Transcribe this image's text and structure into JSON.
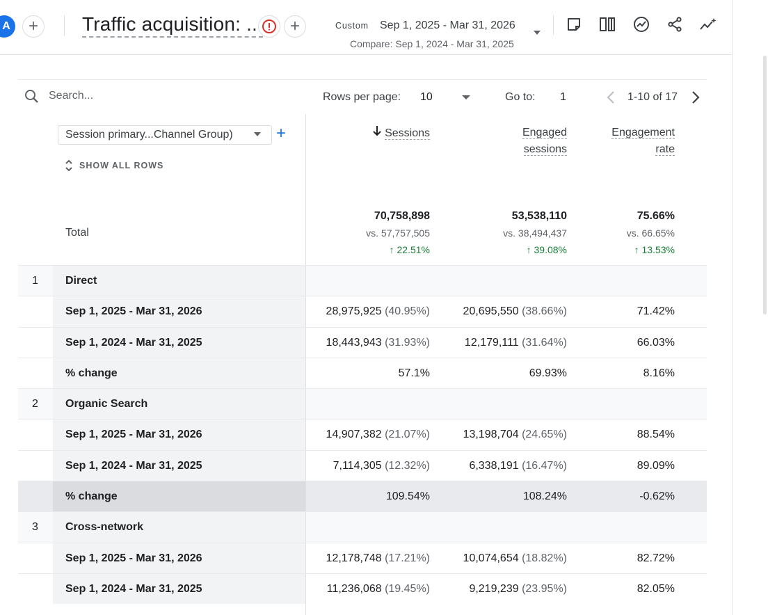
{
  "header": {
    "avatar": "A",
    "title": "Traffic acquisition: ...",
    "date_label": "Custom",
    "date_range": "Sep 1, 2025 - Mar 31, 2026",
    "compare": "Compare: Sep 1, 2024 - Mar 31, 2025"
  },
  "toolbar": {
    "search_placeholder": "Search...",
    "rows_per_page_label": "Rows per page:",
    "rows_per_page": "10",
    "goto_label": "Go to:",
    "goto_value": "1",
    "pagination": "1-10 of 17"
  },
  "dimension": {
    "select": "Session primary...Channel Group)",
    "show_all": "SHOW ALL ROWS"
  },
  "columns": {
    "sessions": "Sessions",
    "engaged_1": "Engaged",
    "engaged_2": "sessions",
    "rate_1": "Engagement",
    "rate_2": "rate"
  },
  "totals": {
    "label": "Total",
    "sessions": "70,758,898",
    "sessions_vs": "vs. 57,757,505",
    "sessions_change": "↑ 22.51%",
    "engaged": "53,538,110",
    "engaged_vs": "vs. 38,494,437",
    "engaged_change": "↑ 39.08%",
    "rate": "75.66%",
    "rate_vs": "vs. 66.65%",
    "rate_change": "↑ 13.53%"
  },
  "rows": [
    {
      "num": "1",
      "label": "Direct",
      "type": "group"
    },
    {
      "num": "",
      "label": "Sep 1, 2025 - Mar 31, 2026",
      "s": "28,975,925",
      "sp": "(40.95%)",
      "e": "20,695,550",
      "ep": "(38.66%)",
      "r": "71.42%"
    },
    {
      "num": "",
      "label": "Sep 1, 2024 - Mar 31, 2025",
      "s": "18,443,943",
      "sp": "(31.93%)",
      "e": "12,179,111",
      "ep": "(31.64%)",
      "r": "66.03%"
    },
    {
      "num": "",
      "label": "% change",
      "s": "57.1%",
      "sp": "",
      "e": "69.93%",
      "ep": "",
      "r": "8.16%"
    },
    {
      "num": "2",
      "label": "Organic Search",
      "type": "group"
    },
    {
      "num": "",
      "label": "Sep 1, 2025 - Mar 31, 2026",
      "s": "14,907,382",
      "sp": "(21.07%)",
      "e": "13,198,704",
      "ep": "(24.65%)",
      "r": "88.54%"
    },
    {
      "num": "",
      "label": "Sep 1, 2024 - Mar 31, 2025",
      "s": "7,114,305",
      "sp": "(12.32%)",
      "e": "6,338,191",
      "ep": "(16.47%)",
      "r": "89.09%"
    },
    {
      "num": "",
      "label": "% change",
      "s": "109.54%",
      "sp": "",
      "e": "108.24%",
      "ep": "",
      "r": "-0.62%",
      "type": "hl"
    },
    {
      "num": "3",
      "label": "Cross-network",
      "type": "group"
    },
    {
      "num": "",
      "label": "Sep 1, 2025 - Mar 31, 2026",
      "s": "12,178,748",
      "sp": "(17.21%)",
      "e": "10,074,654",
      "ep": "(18.82%)",
      "r": "82.72%"
    },
    {
      "num": "",
      "label": "Sep 1, 2024 - Mar 31, 2025",
      "s": "11,236,068",
      "sp": "(19.45%)",
      "e": "9,219,239",
      "ep": "(23.95%)",
      "r": "82.05%"
    }
  ]
}
